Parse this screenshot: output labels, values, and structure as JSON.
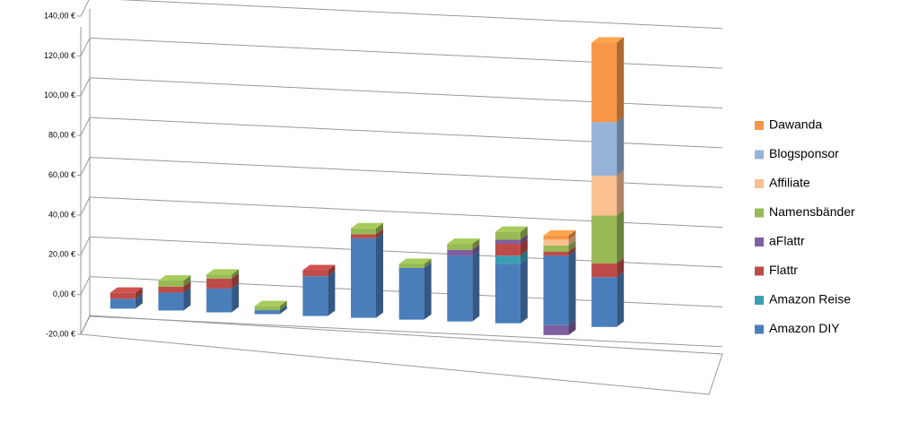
{
  "chart_data": {
    "type": "bar",
    "stacked": true,
    "categories": [
      null,
      null,
      null,
      null,
      null,
      null,
      null,
      null,
      null,
      null,
      null
    ],
    "ylim": [
      -20,
      140
    ],
    "yticks": [
      {
        "value": -20,
        "label": "-20,00 €"
      },
      {
        "value": 0,
        "label": "0,00 €"
      },
      {
        "value": 20,
        "label": "20,00 €"
      },
      {
        "value": 40,
        "label": "40,00 €"
      },
      {
        "value": 60,
        "label": "60,00 €"
      },
      {
        "value": 80,
        "label": "80,00 €"
      },
      {
        "value": 100,
        "label": "100,00 €"
      },
      {
        "value": 120,
        "label": "120,00 €"
      },
      {
        "value": 140,
        "label": "140,00 €"
      }
    ],
    "grid": true,
    "legend": "right",
    "series": [
      {
        "name": "Amazon DIY",
        "color": "#4a7ebb",
        "values": [
          5,
          9,
          12,
          2,
          20,
          40,
          26,
          33,
          30,
          35,
          25
        ]
      },
      {
        "name": "Amazon Reise",
        "color": "#3a9fb3",
        "values": [
          0,
          0,
          0,
          0,
          0,
          0,
          0,
          0,
          4,
          0,
          0
        ]
      },
      {
        "name": "Flattr",
        "color": "#be4b48",
        "values": [
          3,
          3,
          5,
          0,
          3,
          2,
          0,
          0,
          6,
          2,
          7
        ]
      },
      {
        "name": "aFlattr",
        "color": "#7e5fa0",
        "values": [
          0,
          0,
          0,
          0,
          0,
          0,
          0,
          3,
          2,
          -5,
          0
        ]
      },
      {
        "name": "Namensbänder",
        "color": "#98b954",
        "values": [
          0,
          3,
          2,
          2,
          0,
          3,
          2,
          3,
          4,
          3,
          24
        ]
      },
      {
        "name": "Affiliate",
        "color": "#fac090",
        "values": [
          0,
          0,
          0,
          0,
          0,
          0,
          0,
          0,
          0,
          3,
          20
        ]
      },
      {
        "name": "Blogsponsor",
        "color": "#95b3d7",
        "values": [
          0,
          0,
          0,
          0,
          0,
          0,
          0,
          0,
          0,
          0,
          27
        ]
      },
      {
        "name": "Dawanda",
        "color": "#f79646",
        "values": [
          0,
          0,
          0,
          0,
          0,
          0,
          0,
          0,
          0,
          2,
          40
        ]
      }
    ]
  }
}
